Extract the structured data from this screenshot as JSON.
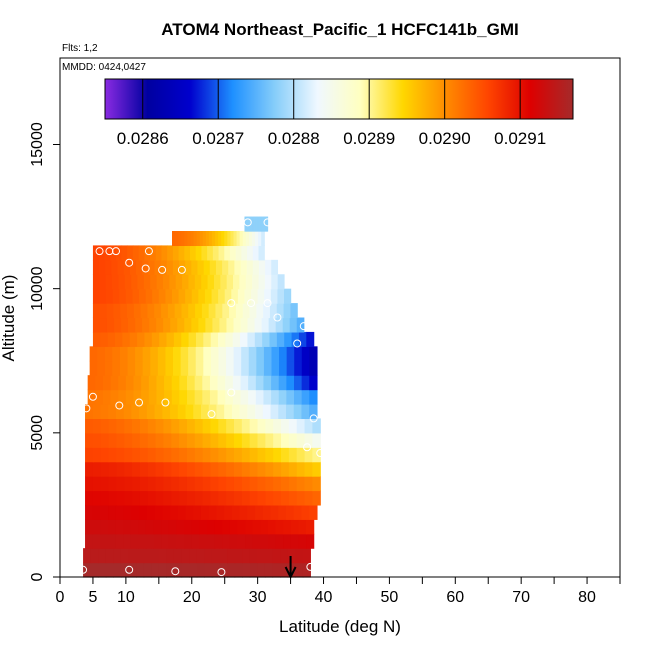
{
  "chart_data": {
    "type": "heatmap",
    "title": "ATOM4 Northeast_Pacific_1 HCFC141b_GMI",
    "flights_label": "Flts: 1,2",
    "dates_label": "MMDD: 0424,0427",
    "xlabel": "Latitude (deg N)",
    "ylabel": "Altitude (m)",
    "xlim": [
      0,
      85
    ],
    "ylim": [
      0,
      18000
    ],
    "x_ticks": [
      0,
      5,
      10,
      20,
      30,
      40,
      50,
      60,
      70,
      80
    ],
    "x_minor_ticks": [
      15,
      25,
      35,
      45,
      55,
      65,
      75,
      85
    ],
    "y_ticks": [
      0,
      5000,
      10000,
      15000
    ],
    "colorbar": {
      "min": 0.02855,
      "max": 0.02917,
      "ticks": [
        "0.0286",
        "0.0287",
        "0.0288",
        "0.0289",
        "0.0290",
        "0.0291"
      ],
      "tick_values": [
        0.0286,
        0.0287,
        0.0288,
        0.0289,
        0.029,
        0.0291
      ],
      "colors": [
        "#8a2be2",
        "#0000a0",
        "#0000cd",
        "#1e90ff",
        "#87cefa",
        "#f0f8ff",
        "#ffffc0",
        "#ffd700",
        "#ff8c00",
        "#ff4500",
        "#dd0000",
        "#a52a2a"
      ]
    },
    "profile": {
      "altitudes": [
        250,
        750,
        1250,
        1750,
        2250,
        2750,
        3250,
        3750,
        4250,
        4750,
        5250,
        5750,
        6250,
        6750,
        7250,
        7750,
        8250,
        8750,
        9250,
        9750,
        10250,
        10750,
        11250,
        11750,
        12250
      ],
      "lat_start": [
        3.5,
        3.5,
        3.8,
        3.8,
        3.8,
        3.8,
        3.8,
        3.8,
        3.8,
        3.8,
        3.8,
        3.8,
        4.2,
        4.2,
        4.5,
        4.5,
        5.0,
        5.0,
        5.0,
        5.0,
        5.0,
        5.0,
        5.0,
        17.0,
        28.0
      ],
      "lat_end": [
        38,
        38,
        38.5,
        38.5,
        39,
        39.5,
        39.5,
        39.5,
        39.5,
        39.5,
        39.5,
        39,
        39,
        39,
        39,
        39,
        38.5,
        37,
        36,
        35,
        34,
        33,
        31,
        31,
        31.5
      ],
      "left_values": [
        0.02917,
        0.02915,
        0.02914,
        0.02913,
        0.02912,
        0.02911,
        0.0291,
        0.02909,
        0.02906,
        0.02905,
        0.02904,
        0.02902,
        0.02902,
        0.02903,
        0.02903,
        0.02903,
        0.02904,
        0.02905,
        0.02905,
        0.02906,
        0.02906,
        0.02906,
        0.02906,
        0.02903,
        0.02878
      ],
      "right_values": [
        0.02916,
        0.02914,
        0.02912,
        0.02909,
        0.02906,
        0.02903,
        0.029,
        0.02895,
        0.0289,
        0.02884,
        0.02879,
        0.02874,
        0.02871,
        0.02865,
        0.02862,
        0.02862,
        0.02866,
        0.02874,
        0.02876,
        0.02878,
        0.0288,
        0.02881,
        0.02881,
        0.02881,
        0.02878
      ]
    },
    "observations": [
      {
        "lat": 3.5,
        "alt": 250
      },
      {
        "lat": 10.5,
        "alt": 250
      },
      {
        "lat": 17.5,
        "alt": 200
      },
      {
        "lat": 24.5,
        "alt": 170
      },
      {
        "lat": 38,
        "alt": 350
      },
      {
        "lat": 4,
        "alt": 5850
      },
      {
        "lat": 5,
        "alt": 6250
      },
      {
        "lat": 9,
        "alt": 5950
      },
      {
        "lat": 12,
        "alt": 6050
      },
      {
        "lat": 16,
        "alt": 6050
      },
      {
        "lat": 23,
        "alt": 5650
      },
      {
        "lat": 26,
        "alt": 6400
      },
      {
        "lat": 38.5,
        "alt": 5500
      },
      {
        "lat": 37.5,
        "alt": 4500
      },
      {
        "lat": 39.5,
        "alt": 4300
      },
      {
        "lat": 6,
        "alt": 11300
      },
      {
        "lat": 7.5,
        "alt": 11300
      },
      {
        "lat": 8.5,
        "alt": 11300
      },
      {
        "lat": 10.5,
        "alt": 10900
      },
      {
        "lat": 13.5,
        "alt": 11300
      },
      {
        "lat": 13,
        "alt": 10700
      },
      {
        "lat": 15.5,
        "alt": 10650
      },
      {
        "lat": 18.5,
        "alt": 10650
      },
      {
        "lat": 26,
        "alt": 9500
      },
      {
        "lat": 29,
        "alt": 9500
      },
      {
        "lat": 31.5,
        "alt": 9500
      },
      {
        "lat": 33,
        "alt": 9000
      },
      {
        "lat": 37,
        "alt": 8700
      },
      {
        "lat": 36,
        "alt": 8100
      },
      {
        "lat": 28.5,
        "alt": 12300
      },
      {
        "lat": 31.5,
        "alt": 12300
      }
    ],
    "marker_lat": 35
  }
}
